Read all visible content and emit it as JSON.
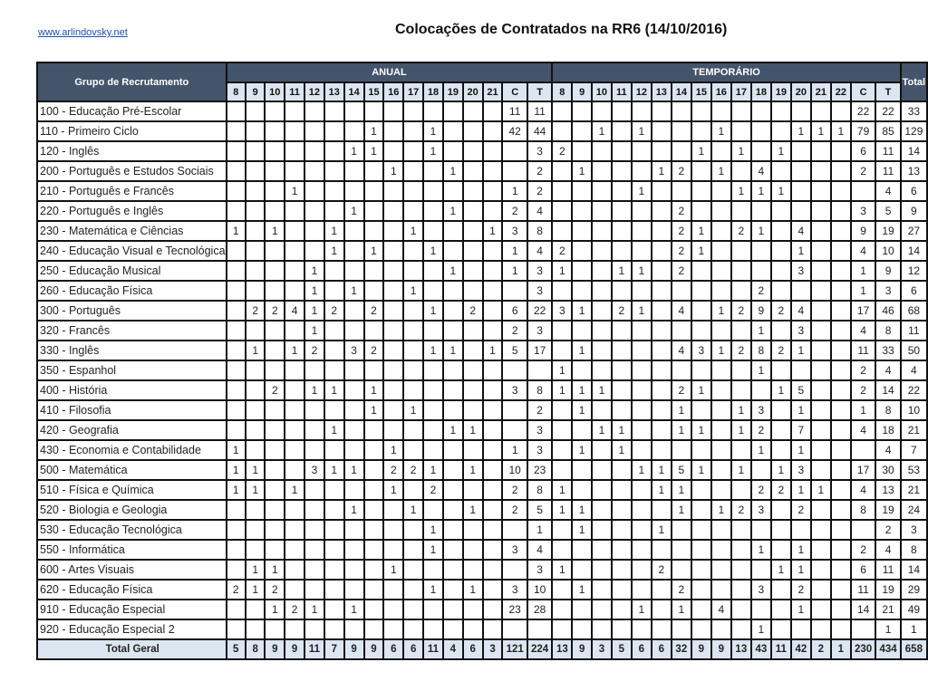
{
  "header": {
    "link": "www.arlindovsky.net",
    "title": "Colocações de Contratados na RR6 (14/10/2016)"
  },
  "colors": {
    "header_bg": "#44546a",
    "subheader_bg": "#dce6f1"
  },
  "table": {
    "group_header": "Grupo de Recrutamento",
    "anual_header": "ANUAL",
    "temp_header": "TEMPORÁRIO",
    "total_header": "Total",
    "anual_columns": [
      "8",
      "9",
      "10",
      "11",
      "12",
      "13",
      "14",
      "15",
      "16",
      "17",
      "18",
      "19",
      "20",
      "21",
      "C",
      "T"
    ],
    "temp_columns": [
      "8",
      "9",
      "10",
      "11",
      "12",
      "13",
      "14",
      "15",
      "16",
      "17",
      "18",
      "19",
      "20",
      "21",
      "22",
      "C",
      "T"
    ],
    "rows": [
      {
        "label": "100 - Educação Pré-Escolar",
        "anual": [
          "",
          "",
          "",
          "",
          "",
          "",
          "",
          "",
          "",
          "",
          "",
          "",
          "",
          "",
          "11",
          "11"
        ],
        "temp": [
          "",
          "",
          "",
          "",
          "",
          "",
          "",
          "",
          "",
          "",
          "",
          "",
          "",
          "",
          "",
          "22",
          "22"
        ],
        "total": "33"
      },
      {
        "label": "110 - Primeiro Ciclo",
        "anual": [
          "",
          "",
          "",
          "",
          "",
          "",
          "",
          "1",
          "",
          "",
          "1",
          "",
          "",
          "",
          "42",
          "44"
        ],
        "temp": [
          "",
          "",
          "1",
          "",
          "1",
          "",
          "",
          "",
          "1",
          "",
          "",
          "",
          "1",
          "1",
          "1",
          "79",
          "85"
        ],
        "total": "129"
      },
      {
        "label": "120 - Inglês",
        "anual": [
          "",
          "",
          "",
          "",
          "",
          "",
          "1",
          "1",
          "",
          "",
          "1",
          "",
          "",
          "",
          "",
          "3"
        ],
        "temp": [
          "2",
          "",
          "",
          "",
          "",
          "",
          "",
          "1",
          "",
          "1",
          "",
          "1",
          "",
          "",
          "",
          "6",
          "11"
        ],
        "total": "14"
      },
      {
        "label": "200 - Português e Estudos Sociais",
        "anual": [
          "",
          "",
          "",
          "",
          "",
          "",
          "",
          "",
          "1",
          "",
          "",
          "1",
          "",
          "",
          "",
          "2"
        ],
        "temp": [
          "",
          "1",
          "",
          "",
          "",
          "1",
          "2",
          "",
          "1",
          "",
          "4",
          "",
          "",
          "",
          "",
          "2",
          "11"
        ],
        "total": "13"
      },
      {
        "label": "210 - Português e Francês",
        "anual": [
          "",
          "",
          "",
          "1",
          "",
          "",
          "",
          "",
          "",
          "",
          "",
          "",
          "",
          "",
          "1",
          "2"
        ],
        "temp": [
          "",
          "",
          "",
          "",
          "1",
          "",
          "",
          "",
          "",
          "1",
          "1",
          "1",
          "",
          "",
          "",
          "",
          "4"
        ],
        "total": "6"
      },
      {
        "label": "220 - Português e Inglês",
        "anual": [
          "",
          "",
          "",
          "",
          "",
          "",
          "1",
          "",
          "",
          "",
          "",
          "1",
          "",
          "",
          "2",
          "4"
        ],
        "temp": [
          "",
          "",
          "",
          "",
          "",
          "",
          "2",
          "",
          "",
          "",
          "",
          "",
          "",
          "",
          "",
          "3",
          "5"
        ],
        "total": "9"
      },
      {
        "label": "230 - Matemática e Ciências",
        "anual": [
          "1",
          "",
          "1",
          "",
          "",
          "1",
          "",
          "",
          "",
          "1",
          "",
          "",
          "",
          "1",
          "3",
          "8"
        ],
        "temp": [
          "",
          "",
          "",
          "",
          "",
          "",
          "2",
          "1",
          "",
          "2",
          "1",
          "",
          "4",
          "",
          "",
          "9",
          "19"
        ],
        "total": "27"
      },
      {
        "label": "240 - Educação Visual e Tecnológica",
        "anual": [
          "",
          "",
          "",
          "",
          "",
          "1",
          "",
          "1",
          "",
          "",
          "1",
          "",
          "",
          "",
          "1",
          "4"
        ],
        "temp": [
          "2",
          "",
          "",
          "",
          "",
          "",
          "2",
          "1",
          "",
          "",
          "",
          "",
          "1",
          "",
          "",
          "4",
          "10"
        ],
        "total": "14"
      },
      {
        "label": "250 - Educação Musical",
        "anual": [
          "",
          "",
          "",
          "",
          "1",
          "",
          "",
          "",
          "",
          "",
          "",
          "1",
          "",
          "",
          "1",
          "3"
        ],
        "temp": [
          "1",
          "",
          "",
          "1",
          "1",
          "",
          "2",
          "",
          "",
          "",
          "",
          "",
          "3",
          "",
          "",
          "1",
          "9"
        ],
        "total": "12"
      },
      {
        "label": "260 - Educação Física",
        "anual": [
          "",
          "",
          "",
          "",
          "1",
          "",
          "1",
          "",
          "",
          "1",
          "",
          "",
          "",
          "",
          "",
          "3"
        ],
        "temp": [
          "",
          "",
          "",
          "",
          "",
          "",
          "",
          "",
          "",
          "",
          "2",
          "",
          "",
          "",
          "",
          "1",
          "3"
        ],
        "total": "6"
      },
      {
        "label": "300 - Português",
        "anual": [
          "",
          "2",
          "2",
          "4",
          "1",
          "2",
          "",
          "2",
          "",
          "",
          "1",
          "",
          "2",
          "",
          "6",
          "22"
        ],
        "temp": [
          "3",
          "1",
          "",
          "2",
          "1",
          "",
          "4",
          "",
          "1",
          "2",
          "9",
          "2",
          "4",
          "",
          "",
          "17",
          "46"
        ],
        "total": "68"
      },
      {
        "label": "320 - Francês",
        "anual": [
          "",
          "",
          "",
          "",
          "1",
          "",
          "",
          "",
          "",
          "",
          "",
          "",
          "",
          "",
          "2",
          "3"
        ],
        "temp": [
          "",
          "",
          "",
          "",
          "",
          "",
          "",
          "",
          "",
          "",
          "1",
          "",
          "3",
          "",
          "",
          "4",
          "8"
        ],
        "total": "11"
      },
      {
        "label": "330 - Inglês",
        "anual": [
          "",
          "1",
          "",
          "1",
          "2",
          "",
          "3",
          "2",
          "",
          "",
          "1",
          "1",
          "",
          "1",
          "5",
          "17"
        ],
        "temp": [
          "",
          "1",
          "",
          "",
          "",
          "",
          "4",
          "3",
          "1",
          "2",
          "8",
          "2",
          "1",
          "",
          "",
          "11",
          "33"
        ],
        "total": "50"
      },
      {
        "label": "350 - Espanhol",
        "anual": [
          "",
          "",
          "",
          "",
          "",
          "",
          "",
          "",
          "",
          "",
          "",
          "",
          "",
          "",
          "",
          ""
        ],
        "temp": [
          "1",
          "",
          "",
          "",
          "",
          "",
          "",
          "",
          "",
          "",
          "1",
          "",
          "",
          "",
          "",
          "2",
          "4"
        ],
        "total": "4"
      },
      {
        "label": "400 - História",
        "anual": [
          "",
          "",
          "2",
          "",
          "1",
          "1",
          "",
          "1",
          "",
          "",
          "",
          "",
          "",
          "",
          "3",
          "8"
        ],
        "temp": [
          "1",
          "1",
          "1",
          "",
          "",
          "",
          "2",
          "1",
          "",
          "",
          "",
          "1",
          "5",
          "",
          "",
          "2",
          "14"
        ],
        "total": "22"
      },
      {
        "label": "410 - Filosofia",
        "anual": [
          "",
          "",
          "",
          "",
          "",
          "",
          "",
          "1",
          "",
          "1",
          "",
          "",
          "",
          "",
          "",
          "2"
        ],
        "temp": [
          "",
          "1",
          "",
          "",
          "",
          "",
          "1",
          "",
          "",
          "1",
          "3",
          "",
          "1",
          "",
          "",
          "1",
          "8"
        ],
        "total": "10"
      },
      {
        "label": "420 - Geografia",
        "anual": [
          "",
          "",
          "",
          "",
          "",
          "1",
          "",
          "",
          "",
          "",
          "",
          "1",
          "1",
          "",
          "",
          "3"
        ],
        "temp": [
          "",
          "",
          "1",
          "1",
          "",
          "",
          "1",
          "1",
          "",
          "1",
          "2",
          "",
          "7",
          "",
          "",
          "4",
          "18"
        ],
        "total": "21"
      },
      {
        "label": "430 - Economia  e Contabilidade",
        "anual": [
          "1",
          "",
          "",
          "",
          "",
          "",
          "",
          "",
          "1",
          "",
          "",
          "",
          "",
          "",
          "1",
          "3"
        ],
        "temp": [
          "",
          "1",
          "",
          "1",
          "",
          "",
          "",
          "",
          "",
          "",
          "1",
          "",
          "1",
          "",
          "",
          "",
          "4"
        ],
        "total": "7"
      },
      {
        "label": "500 - Matemática",
        "anual": [
          "1",
          "1",
          "",
          "",
          "3",
          "1",
          "1",
          "",
          "2",
          "2",
          "1",
          "",
          "1",
          "",
          "10",
          "23"
        ],
        "temp": [
          "",
          "",
          "",
          "",
          "1",
          "1",
          "5",
          "1",
          "",
          "1",
          "",
          "1",
          "3",
          "",
          "",
          "17",
          "30"
        ],
        "total": "53"
      },
      {
        "label": "510 - Física e Química",
        "anual": [
          "1",
          "1",
          "",
          "1",
          "",
          "",
          "",
          "",
          "1",
          "",
          "2",
          "",
          "",
          "",
          "2",
          "8"
        ],
        "temp": [
          "1",
          "",
          "",
          "",
          "",
          "1",
          "1",
          "",
          "",
          "",
          "2",
          "2",
          "1",
          "1",
          "",
          "4",
          "13"
        ],
        "total": "21"
      },
      {
        "label": "520 - Biologia e Geologia",
        "anual": [
          "",
          "",
          "",
          "",
          "",
          "",
          "1",
          "",
          "",
          "1",
          "",
          "",
          "1",
          "",
          "2",
          "5"
        ],
        "temp": [
          "1",
          "1",
          "",
          "",
          "",
          "",
          "1",
          "",
          "1",
          "2",
          "3",
          "",
          "2",
          "",
          "",
          "8",
          "19"
        ],
        "total": "24"
      },
      {
        "label": "530 - Educação Tecnológica",
        "anual": [
          "",
          "",
          "",
          "",
          "",
          "",
          "",
          "",
          "",
          "",
          "1",
          "",
          "",
          "",
          "",
          "1"
        ],
        "temp": [
          "",
          "1",
          "",
          "",
          "",
          "1",
          "",
          "",
          "",
          "",
          "",
          "",
          "",
          "",
          "",
          "",
          "2"
        ],
        "total": "3"
      },
      {
        "label": "550 - Informática",
        "anual": [
          "",
          "",
          "",
          "",
          "",
          "",
          "",
          "",
          "",
          "",
          "1",
          "",
          "",
          "",
          "3",
          "4"
        ],
        "temp": [
          "",
          "",
          "",
          "",
          "",
          "",
          "",
          "",
          "",
          "",
          "1",
          "",
          "1",
          "",
          "",
          "2",
          "4"
        ],
        "total": "8"
      },
      {
        "label": "600 - Artes Visuais",
        "anual": [
          "",
          "1",
          "1",
          "",
          "",
          "",
          "",
          "",
          "1",
          "",
          "",
          "",
          "",
          "",
          "",
          "3"
        ],
        "temp": [
          "1",
          "",
          "",
          "",
          "",
          "2",
          "",
          "",
          "",
          "",
          "",
          "1",
          "1",
          "",
          "",
          "6",
          "11"
        ],
        "total": "14"
      },
      {
        "label": "620 - Educação Física",
        "anual": [
          "2",
          "1",
          "2",
          "",
          "",
          "",
          "",
          "",
          "",
          "",
          "1",
          "",
          "1",
          "",
          "3",
          "10"
        ],
        "temp": [
          "",
          "1",
          "",
          "",
          "",
          "",
          "2",
          "",
          "",
          "",
          "3",
          "",
          "2",
          "",
          "",
          "11",
          "19"
        ],
        "total": "29"
      },
      {
        "label": "910 - Educação Especial",
        "anual": [
          "",
          "",
          "1",
          "2",
          "1",
          "",
          "1",
          "",
          "",
          "",
          "",
          "",
          "",
          "",
          "23",
          "28"
        ],
        "temp": [
          "",
          "",
          "",
          "",
          "1",
          "",
          "1",
          "",
          "4",
          "",
          "",
          "",
          "1",
          "",
          "",
          "14",
          "21"
        ],
        "total": "49"
      },
      {
        "label": "920 - Educação Especial 2",
        "anual": [
          "",
          "",
          "",
          "",
          "",
          "",
          "",
          "",
          "",
          "",
          "",
          "",
          "",
          "",
          "",
          ""
        ],
        "temp": [
          "",
          "",
          "",
          "",
          "",
          "",
          "",
          "",
          "",
          "",
          "1",
          "",
          "",
          "",
          "",
          "",
          "1"
        ],
        "total": "1"
      }
    ],
    "total_row": {
      "label": "Total Geral",
      "anual": [
        "5",
        "8",
        "9",
        "9",
        "11",
        "7",
        "9",
        "9",
        "6",
        "6",
        "11",
        "4",
        "6",
        "3",
        "121",
        "224"
      ],
      "temp": [
        "13",
        "9",
        "3",
        "5",
        "6",
        "6",
        "32",
        "9",
        "9",
        "13",
        "43",
        "11",
        "42",
        "2",
        "1",
        "230",
        "434"
      ],
      "total": "658"
    }
  }
}
